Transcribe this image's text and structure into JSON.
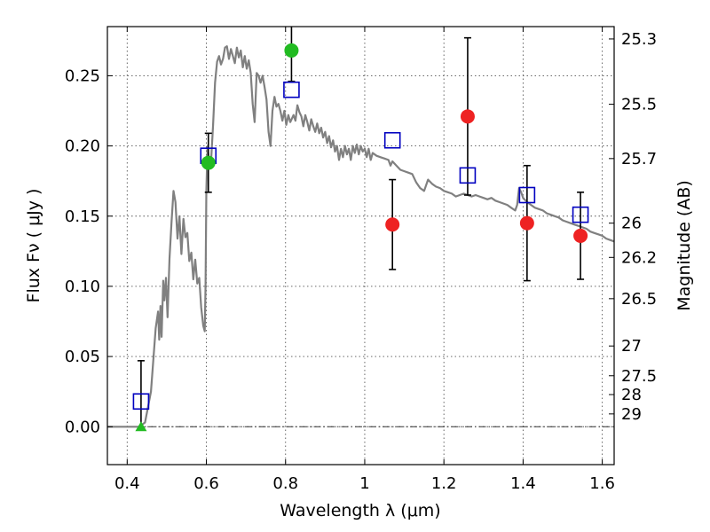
{
  "chart_data": {
    "type": "scatter",
    "title": "",
    "xlabel": "Wavelength  λ (μm)",
    "ylabel": "Flux  Fν  ( μJy )",
    "y2label": "Magnitude (AB)",
    "xlim": [
      0.35,
      1.63
    ],
    "ylim": [
      -0.027,
      0.285
    ],
    "grid": true,
    "x_ticks": [
      0.4,
      0.6,
      0.8,
      1.0,
      1.2,
      1.4,
      1.6
    ],
    "x_tick_labels": [
      "0.4",
      "0.6",
      "0.8",
      "1",
      "1.2",
      "1.4",
      "1.6"
    ],
    "y_ticks": [
      0.0,
      0.05,
      0.1,
      0.15,
      0.2,
      0.25
    ],
    "y_tick_labels": [
      "0.00",
      "0.05",
      "0.10",
      "0.15",
      "0.20",
      "0.25"
    ],
    "magnitude_ticks": [
      {
        "label": "25.3",
        "flux": 0.2762
      },
      {
        "label": "25.5",
        "flux": 0.2297
      },
      {
        "label": "25.7",
        "flux": 0.191
      },
      {
        "label": "26",
        "flux": 0.145
      },
      {
        "label": "26.2",
        "flux": 0.1206
      },
      {
        "label": "26.5",
        "flux": 0.0912
      },
      {
        "label": "27",
        "flux": 0.0575
      },
      {
        "label": "27.5",
        "flux": 0.0363
      },
      {
        "label": "28",
        "flux": 0.0229
      },
      {
        "label": "29",
        "flux": 0.0091
      }
    ],
    "series": [
      {
        "name": "model SED",
        "kind": "line",
        "color": "#808080",
        "points": [
          [
            0.35,
            0.0
          ],
          [
            0.43,
            0.0
          ],
          [
            0.445,
            0.003
          ],
          [
            0.46,
            0.025
          ],
          [
            0.472,
            0.07
          ],
          [
            0.478,
            0.082
          ],
          [
            0.481,
            0.062
          ],
          [
            0.484,
            0.086
          ],
          [
            0.487,
            0.064
          ],
          [
            0.491,
            0.104
          ],
          [
            0.494,
            0.09
          ],
          [
            0.498,
            0.106
          ],
          [
            0.502,
            0.078
          ],
          [
            0.507,
            0.12
          ],
          [
            0.512,
            0.146
          ],
          [
            0.517,
            0.168
          ],
          [
            0.522,
            0.16
          ],
          [
            0.527,
            0.134
          ],
          [
            0.532,
            0.15
          ],
          [
            0.537,
            0.123
          ],
          [
            0.542,
            0.148
          ],
          [
            0.547,
            0.135
          ],
          [
            0.552,
            0.138
          ],
          [
            0.557,
            0.118
          ],
          [
            0.562,
            0.124
          ],
          [
            0.567,
            0.105
          ],
          [
            0.572,
            0.119
          ],
          [
            0.577,
            0.102
          ],
          [
            0.582,
            0.106
          ],
          [
            0.587,
            0.085
          ],
          [
            0.592,
            0.072
          ],
          [
            0.596,
            0.068
          ],
          [
            0.598,
            0.1
          ],
          [
            0.6,
            0.168
          ],
          [
            0.603,
            0.2
          ],
          [
            0.607,
            0.187
          ],
          [
            0.612,
            0.19
          ],
          [
            0.617,
            0.215
          ],
          [
            0.622,
            0.245
          ],
          [
            0.627,
            0.26
          ],
          [
            0.632,
            0.264
          ],
          [
            0.637,
            0.258
          ],
          [
            0.642,
            0.262
          ],
          [
            0.647,
            0.27
          ],
          [
            0.652,
            0.271
          ],
          [
            0.657,
            0.262
          ],
          [
            0.662,
            0.269
          ],
          [
            0.667,
            0.264
          ],
          [
            0.672,
            0.259
          ],
          [
            0.677,
            0.27
          ],
          [
            0.682,
            0.263
          ],
          [
            0.687,
            0.268
          ],
          [
            0.692,
            0.256
          ],
          [
            0.697,
            0.264
          ],
          [
            0.702,
            0.255
          ],
          [
            0.707,
            0.261
          ],
          [
            0.712,
            0.252
          ],
          [
            0.717,
            0.23
          ],
          [
            0.722,
            0.217
          ],
          [
            0.727,
            0.252
          ],
          [
            0.732,
            0.25
          ],
          [
            0.737,
            0.245
          ],
          [
            0.742,
            0.25
          ],
          [
            0.747,
            0.242
          ],
          [
            0.752,
            0.233
          ],
          [
            0.757,
            0.21
          ],
          [
            0.762,
            0.2
          ],
          [
            0.767,
            0.225
          ],
          [
            0.772,
            0.235
          ],
          [
            0.777,
            0.228
          ],
          [
            0.782,
            0.23
          ],
          [
            0.787,
            0.225
          ],
          [
            0.792,
            0.218
          ],
          [
            0.797,
            0.225
          ],
          [
            0.802,
            0.215
          ],
          [
            0.807,
            0.222
          ],
          [
            0.812,
            0.217
          ],
          [
            0.82,
            0.222
          ],
          [
            0.825,
            0.218
          ],
          [
            0.83,
            0.229
          ],
          [
            0.835,
            0.224
          ],
          [
            0.84,
            0.221
          ],
          [
            0.845,
            0.214
          ],
          [
            0.85,
            0.222
          ],
          [
            0.855,
            0.217
          ],
          [
            0.86,
            0.211
          ],
          [
            0.865,
            0.219
          ],
          [
            0.87,
            0.214
          ],
          [
            0.875,
            0.21
          ],
          [
            0.88,
            0.216
          ],
          [
            0.885,
            0.209
          ],
          [
            0.89,
            0.213
          ],
          [
            0.895,
            0.206
          ],
          [
            0.9,
            0.21
          ],
          [
            0.905,
            0.202
          ],
          [
            0.91,
            0.207
          ],
          [
            0.915,
            0.199
          ],
          [
            0.92,
            0.204
          ],
          [
            0.925,
            0.196
          ],
          [
            0.93,
            0.2
          ],
          [
            0.935,
            0.19
          ],
          [
            0.94,
            0.198
          ],
          [
            0.945,
            0.192
          ],
          [
            0.95,
            0.2
          ],
          [
            0.955,
            0.194
          ],
          [
            0.96,
            0.198
          ],
          [
            0.965,
            0.19
          ],
          [
            0.97,
            0.2
          ],
          [
            0.975,
            0.195
          ],
          [
            0.98,
            0.201
          ],
          [
            0.985,
            0.194
          ],
          [
            0.99,
            0.2
          ],
          [
            0.995,
            0.196
          ],
          [
            1.0,
            0.198
          ],
          [
            1.005,
            0.192
          ],
          [
            1.01,
            0.198
          ],
          [
            1.015,
            0.19
          ],
          [
            1.02,
            0.195
          ],
          [
            1.03,
            0.193
          ],
          [
            1.04,
            0.192
          ],
          [
            1.05,
            0.191
          ],
          [
            1.06,
            0.19
          ],
          [
            1.065,
            0.186
          ],
          [
            1.07,
            0.189
          ],
          [
            1.08,
            0.186
          ],
          [
            1.09,
            0.183
          ],
          [
            1.1,
            0.182
          ],
          [
            1.11,
            0.181
          ],
          [
            1.12,
            0.18
          ],
          [
            1.13,
            0.174
          ],
          [
            1.14,
            0.17
          ],
          [
            1.15,
            0.168
          ],
          [
            1.16,
            0.176
          ],
          [
            1.17,
            0.173
          ],
          [
            1.18,
            0.171
          ],
          [
            1.19,
            0.17
          ],
          [
            1.2,
            0.168
          ],
          [
            1.21,
            0.167
          ],
          [
            1.22,
            0.166
          ],
          [
            1.23,
            0.164
          ],
          [
            1.24,
            0.165
          ],
          [
            1.25,
            0.166
          ],
          [
            1.26,
            0.165
          ],
          [
            1.27,
            0.164
          ],
          [
            1.28,
            0.165
          ],
          [
            1.29,
            0.164
          ],
          [
            1.3,
            0.163
          ],
          [
            1.31,
            0.162
          ],
          [
            1.32,
            0.163
          ],
          [
            1.33,
            0.161
          ],
          [
            1.34,
            0.16
          ],
          [
            1.35,
            0.159
          ],
          [
            1.36,
            0.158
          ],
          [
            1.37,
            0.156
          ],
          [
            1.38,
            0.154
          ],
          [
            1.385,
            0.158
          ],
          [
            1.39,
            0.17
          ],
          [
            1.395,
            0.167
          ],
          [
            1.4,
            0.163
          ],
          [
            1.41,
            0.16
          ],
          [
            1.42,
            0.158
          ],
          [
            1.43,
            0.156
          ],
          [
            1.44,
            0.155
          ],
          [
            1.45,
            0.154
          ],
          [
            1.46,
            0.152
          ],
          [
            1.47,
            0.151
          ],
          [
            1.48,
            0.15
          ],
          [
            1.49,
            0.149
          ],
          [
            1.5,
            0.147
          ],
          [
            1.51,
            0.146
          ],
          [
            1.52,
            0.145
          ],
          [
            1.53,
            0.144
          ],
          [
            1.54,
            0.143
          ],
          [
            1.55,
            0.142
          ],
          [
            1.56,
            0.141
          ],
          [
            1.57,
            0.139
          ],
          [
            1.58,
            0.138
          ],
          [
            1.59,
            0.137
          ],
          [
            1.6,
            0.136
          ],
          [
            1.61,
            0.134
          ],
          [
            1.62,
            0.133
          ],
          [
            1.63,
            0.132
          ]
        ]
      },
      {
        "name": "model photometry",
        "kind": "square",
        "color": "#0000c0",
        "points": [
          [
            0.435,
            0.018
          ],
          [
            0.605,
            0.193
          ],
          [
            0.815,
            0.24
          ],
          [
            1.07,
            0.204
          ],
          [
            1.26,
            0.179
          ],
          [
            1.41,
            0.165
          ],
          [
            1.545,
            0.151
          ]
        ]
      },
      {
        "name": "detections (green)",
        "kind": "circle",
        "color": "#22bb22",
        "points": [
          [
            0.605,
            0.188,
            0.021
          ],
          [
            0.815,
            0.268,
            0.022
          ]
        ]
      },
      {
        "name": "detections (red)",
        "kind": "circle",
        "color": "#ee2222",
        "points": [
          [
            1.07,
            0.144,
            0.032
          ],
          [
            1.26,
            0.221,
            0.056
          ],
          [
            1.41,
            0.145,
            0.041
          ],
          [
            1.545,
            0.136,
            0.031
          ]
        ]
      },
      {
        "name": "upper limit",
        "kind": "triangle",
        "color": "#22bb22",
        "points": [
          [
            0.435,
            0.0,
            0.047
          ]
        ]
      }
    ]
  }
}
